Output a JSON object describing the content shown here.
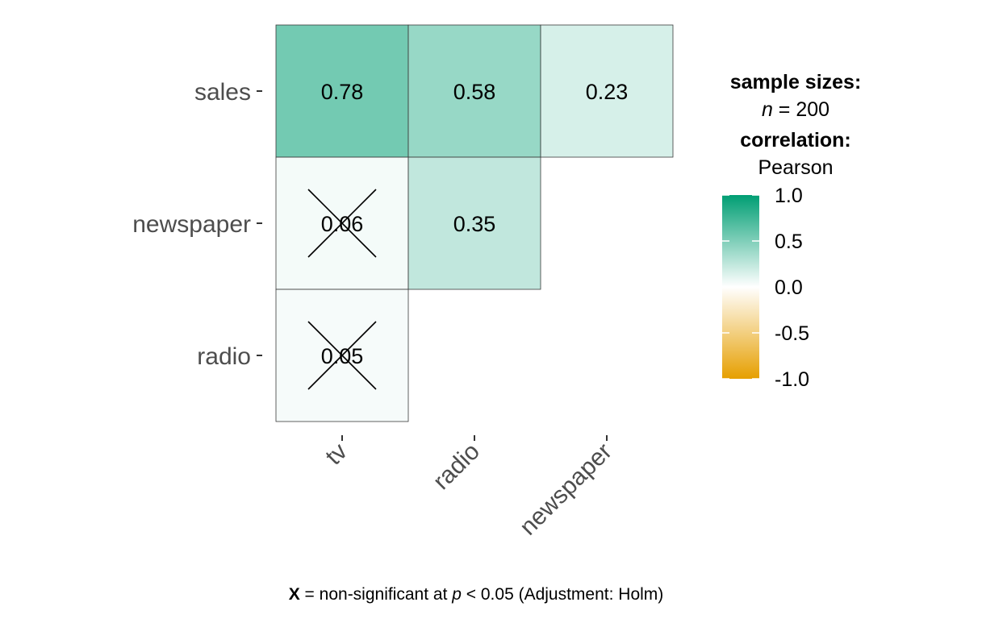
{
  "chart_data": {
    "type": "heatmap",
    "x_categories": [
      "tv",
      "radio",
      "newspaper"
    ],
    "y_categories": [
      "sales",
      "newspaper",
      "radio"
    ],
    "cells": [
      {
        "row": "sales",
        "col": "tv",
        "value": 0.78,
        "label": "0.78",
        "significant": true
      },
      {
        "row": "sales",
        "col": "radio",
        "value": 0.58,
        "label": "0.58",
        "significant": true
      },
      {
        "row": "sales",
        "col": "newspaper",
        "value": 0.23,
        "label": "0.23",
        "significant": true
      },
      {
        "row": "newspaper",
        "col": "tv",
        "value": 0.06,
        "label": "0.06",
        "significant": false
      },
      {
        "row": "newspaper",
        "col": "radio",
        "value": 0.35,
        "label": "0.35",
        "significant": true
      },
      {
        "row": "radio",
        "col": "tv",
        "value": 0.05,
        "label": "0.05",
        "significant": false
      }
    ],
    "color_scale": {
      "low": "#E69F00",
      "mid": "#FFFFFF",
      "high": "#009E73",
      "limits": [
        -1.0,
        1.0
      ],
      "ticks": [
        1.0,
        0.5,
        0.0,
        -0.5,
        -1.0
      ],
      "tick_labels": [
        "1.0",
        "0.5",
        "0.0",
        "-0.5",
        "-1.0"
      ]
    },
    "legend": {
      "sample_sizes_title": "sample sizes:",
      "n_symbol": "n",
      "n_text": " = 200",
      "correlation_title": "correlation:",
      "correlation_method": "Pearson",
      "placement": "right"
    },
    "caption": {
      "symbol": "X",
      "text_before": " = non-significant at ",
      "p_symbol": "p",
      "text_after": " < 0.05 (Adjustment: Holm)"
    }
  }
}
